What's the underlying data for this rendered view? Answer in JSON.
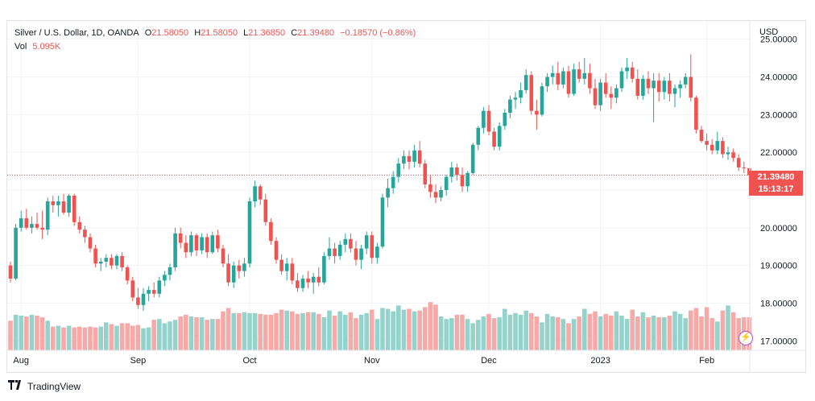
{
  "legend": {
    "symbol": "Silver / U.S. Dollar, 1D, OANDA",
    "open_label": "O",
    "open": "21.58050",
    "high_label": "H",
    "high": "21.58050",
    "low_label": "L",
    "low": "21.36850",
    "close_label": "C",
    "close": "21.39480",
    "change": "−0.18570 (−0.86%)",
    "vol_label": "Vol",
    "vol": "5.095K"
  },
  "currency": "USD",
  "last_price": "21.39480",
  "countdown": "15:13:17",
  "brand": "TradingView",
  "colors": {
    "up": "#26a69a",
    "down": "#ef5350",
    "up_vol": "#93d3cb",
    "down_vol": "#f7a9a7",
    "grid": "#f0f3fa"
  },
  "chart_data": {
    "type": "candlestick",
    "y_ticks": [
      "17.00000",
      "18.00000",
      "19.00000",
      "20.00000",
      "21.00000",
      "22.00000",
      "23.00000",
      "24.00000",
      "25.00000"
    ],
    "ylim": [
      16.9,
      25.1
    ],
    "x_labels": [
      {
        "label": "Aug",
        "index": 2
      },
      {
        "label": "Sep",
        "index": 24
      },
      {
        "label": "Oct",
        "index": 45
      },
      {
        "label": "Nov",
        "index": 68
      },
      {
        "label": "Dec",
        "index": 90
      },
      {
        "label": "2023",
        "index": 111
      },
      {
        "label": "Feb",
        "index": 131
      }
    ],
    "candles": [
      [
        19.0,
        19.1,
        18.55,
        18.65
      ],
      [
        18.65,
        20.1,
        18.6,
        20.0
      ],
      [
        20.0,
        20.45,
        19.9,
        20.25
      ],
      [
        20.25,
        20.5,
        19.95,
        20.0
      ],
      [
        20.0,
        20.3,
        19.85,
        20.1
      ],
      [
        20.1,
        20.4,
        19.95,
        20.0
      ],
      [
        20.0,
        20.45,
        19.7,
        19.95
      ],
      [
        19.95,
        20.8,
        19.8,
        20.7
      ],
      [
        20.7,
        20.85,
        20.4,
        20.6
      ],
      [
        20.6,
        20.85,
        20.3,
        20.7
      ],
      [
        20.7,
        20.9,
        20.35,
        20.4
      ],
      [
        20.4,
        20.9,
        20.3,
        20.85
      ],
      [
        20.85,
        20.9,
        20.05,
        20.15
      ],
      [
        20.15,
        20.3,
        19.85,
        19.95
      ],
      [
        19.95,
        20.05,
        19.6,
        19.75
      ],
      [
        19.75,
        19.85,
        19.35,
        19.45
      ],
      [
        19.45,
        19.55,
        18.95,
        19.05
      ],
      [
        19.05,
        19.2,
        18.85,
        19.1
      ],
      [
        19.1,
        19.3,
        18.95,
        19.2
      ],
      [
        19.2,
        19.3,
        18.9,
        19.0
      ],
      [
        19.0,
        19.3,
        18.9,
        19.25
      ],
      [
        19.25,
        19.35,
        18.85,
        18.95
      ],
      [
        18.95,
        19.0,
        18.5,
        18.6
      ],
      [
        18.6,
        18.7,
        18.05,
        18.15
      ],
      [
        18.15,
        18.4,
        17.85,
        17.95
      ],
      [
        17.95,
        18.4,
        17.8,
        18.25
      ],
      [
        18.25,
        18.45,
        18.05,
        18.35
      ],
      [
        18.35,
        18.55,
        18.15,
        18.25
      ],
      [
        18.25,
        18.7,
        18.15,
        18.6
      ],
      [
        18.6,
        18.85,
        18.45,
        18.75
      ],
      [
        18.75,
        19.05,
        18.6,
        18.95
      ],
      [
        18.95,
        20.0,
        18.85,
        19.85
      ],
      [
        19.85,
        20.0,
        19.45,
        19.6
      ],
      [
        19.6,
        19.8,
        19.2,
        19.35
      ],
      [
        19.35,
        19.9,
        19.25,
        19.8
      ],
      [
        19.8,
        19.85,
        19.25,
        19.4
      ],
      [
        19.4,
        19.85,
        19.3,
        19.75
      ],
      [
        19.75,
        19.85,
        19.2,
        19.35
      ],
      [
        19.35,
        19.9,
        19.3,
        19.8
      ],
      [
        19.8,
        19.95,
        19.35,
        19.45
      ],
      [
        19.45,
        19.55,
        18.95,
        19.05
      ],
      [
        19.05,
        19.3,
        18.45,
        18.55
      ],
      [
        18.55,
        19.1,
        18.4,
        19.0
      ],
      [
        19.0,
        19.15,
        18.65,
        18.85
      ],
      [
        18.85,
        19.2,
        18.7,
        19.05
      ],
      [
        19.05,
        20.8,
        18.95,
        20.7
      ],
      [
        20.7,
        21.25,
        20.55,
        21.1
      ],
      [
        21.1,
        21.15,
        20.6,
        20.75
      ],
      [
        20.75,
        20.9,
        20.05,
        20.15
      ],
      [
        20.15,
        20.25,
        19.55,
        19.65
      ],
      [
        19.65,
        19.75,
        19.05,
        19.15
      ],
      [
        19.15,
        19.3,
        18.75,
        18.85
      ],
      [
        18.85,
        19.2,
        18.6,
        19.05
      ],
      [
        19.05,
        19.2,
        18.5,
        18.6
      ],
      [
        18.6,
        18.8,
        18.3,
        18.4
      ],
      [
        18.4,
        18.75,
        18.3,
        18.65
      ],
      [
        18.65,
        18.85,
        18.4,
        18.55
      ],
      [
        18.55,
        18.8,
        18.25,
        18.7
      ],
      [
        18.7,
        18.95,
        18.45,
        18.55
      ],
      [
        18.55,
        19.35,
        18.5,
        19.25
      ],
      [
        19.25,
        19.75,
        19.15,
        19.45
      ],
      [
        19.45,
        19.6,
        19.05,
        19.25
      ],
      [
        19.25,
        19.65,
        19.15,
        19.55
      ],
      [
        19.55,
        19.85,
        19.35,
        19.7
      ],
      [
        19.7,
        19.85,
        19.35,
        19.45
      ],
      [
        19.45,
        19.65,
        19.0,
        19.15
      ],
      [
        19.15,
        19.55,
        18.9,
        19.45
      ],
      [
        19.45,
        19.9,
        19.3,
        19.8
      ],
      [
        19.8,
        19.9,
        19.05,
        19.2
      ],
      [
        19.2,
        19.6,
        19.05,
        19.5
      ],
      [
        19.5,
        20.9,
        19.45,
        20.8
      ],
      [
        20.8,
        21.3,
        20.55,
        21.05
      ],
      [
        21.05,
        21.5,
        20.9,
        21.35
      ],
      [
        21.35,
        21.85,
        21.2,
        21.7
      ],
      [
        21.7,
        22.05,
        21.55,
        21.9
      ],
      [
        21.9,
        22.05,
        21.55,
        21.75
      ],
      [
        21.75,
        22.2,
        21.6,
        22.05
      ],
      [
        22.05,
        22.3,
        21.6,
        21.7
      ],
      [
        21.7,
        21.8,
        21.05,
        21.15
      ],
      [
        21.15,
        21.4,
        20.8,
        20.95
      ],
      [
        20.95,
        21.15,
        20.65,
        20.8
      ],
      [
        20.8,
        21.1,
        20.7,
        21.0
      ],
      [
        21.0,
        21.4,
        20.85,
        21.35
      ],
      [
        21.35,
        21.75,
        21.2,
        21.6
      ],
      [
        21.6,
        21.7,
        21.25,
        21.4
      ],
      [
        21.4,
        21.6,
        20.95,
        21.1
      ],
      [
        21.1,
        21.5,
        20.95,
        21.45
      ],
      [
        21.45,
        22.25,
        21.4,
        22.2
      ],
      [
        22.2,
        22.7,
        22.05,
        22.65
      ],
      [
        22.65,
        23.2,
        22.5,
        23.1
      ],
      [
        23.1,
        23.25,
        22.45,
        22.55
      ],
      [
        22.55,
        22.65,
        22.05,
        22.15
      ],
      [
        22.15,
        22.8,
        22.05,
        22.7
      ],
      [
        22.7,
        23.15,
        22.6,
        23.05
      ],
      [
        23.05,
        23.5,
        22.9,
        23.4
      ],
      [
        23.4,
        23.6,
        23.15,
        23.45
      ],
      [
        23.45,
        23.85,
        23.3,
        23.65
      ],
      [
        23.65,
        24.2,
        23.55,
        24.05
      ],
      [
        24.05,
        24.15,
        23.0,
        23.1
      ],
      [
        23.1,
        23.4,
        22.6,
        23.0
      ],
      [
        23.0,
        23.85,
        22.95,
        23.75
      ],
      [
        23.75,
        24.1,
        23.6,
        24.0
      ],
      [
        24.0,
        24.3,
        23.8,
        24.1
      ],
      [
        24.1,
        24.4,
        23.65,
        23.8
      ],
      [
        23.8,
        24.25,
        23.7,
        24.15
      ],
      [
        24.15,
        24.3,
        23.45,
        23.55
      ],
      [
        23.55,
        24.35,
        23.5,
        24.2
      ],
      [
        24.2,
        24.4,
        23.85,
        23.95
      ],
      [
        23.95,
        24.5,
        23.8,
        24.1
      ],
      [
        24.1,
        24.35,
        23.55,
        23.7
      ],
      [
        23.7,
        23.95,
        23.15,
        23.25
      ],
      [
        23.25,
        23.95,
        23.1,
        23.85
      ],
      [
        23.85,
        24.1,
        23.45,
        23.55
      ],
      [
        23.55,
        23.75,
        23.15,
        23.45
      ],
      [
        23.45,
        23.8,
        23.3,
        23.7
      ],
      [
        23.7,
        24.25,
        23.6,
        24.15
      ],
      [
        24.15,
        24.5,
        23.95,
        24.25
      ],
      [
        24.25,
        24.4,
        23.85,
        23.95
      ],
      [
        23.95,
        24.2,
        23.4,
        23.5
      ],
      [
        23.5,
        24.05,
        23.4,
        23.95
      ],
      [
        23.95,
        24.15,
        23.55,
        23.7
      ],
      [
        23.7,
        24.1,
        22.8,
        23.9
      ],
      [
        23.9,
        24.1,
        23.35,
        23.6
      ],
      [
        23.6,
        24.0,
        23.4,
        23.9
      ],
      [
        23.9,
        24.1,
        23.35,
        23.55
      ],
      [
        23.55,
        23.8,
        23.2,
        23.7
      ],
      [
        23.7,
        23.9,
        23.45,
        23.8
      ],
      [
        23.8,
        24.1,
        23.7,
        24.0
      ],
      [
        24.0,
        24.6,
        23.35,
        23.45
      ],
      [
        23.45,
        23.5,
        22.5,
        22.6
      ],
      [
        22.6,
        22.7,
        22.25,
        22.3
      ],
      [
        22.3,
        22.5,
        22.05,
        22.2
      ],
      [
        22.2,
        22.35,
        21.95,
        22.05
      ],
      [
        22.05,
        22.55,
        21.95,
        22.3
      ],
      [
        22.3,
        22.4,
        21.85,
        21.95
      ],
      [
        21.95,
        22.15,
        21.8,
        22.0
      ],
      [
        22.0,
        22.1,
        21.75,
        21.85
      ],
      [
        21.85,
        21.95,
        21.5,
        21.6
      ],
      [
        21.6,
        21.75,
        21.45,
        21.58
      ],
      [
        21.58,
        21.58,
        21.37,
        21.39
      ]
    ],
    "volume": [
      0.35,
      0.42,
      0.41,
      0.4,
      0.42,
      0.41,
      0.39,
      0.35,
      0.28,
      0.29,
      0.27,
      0.29,
      0.27,
      0.28,
      0.27,
      0.28,
      0.27,
      0.28,
      0.33,
      0.31,
      0.29,
      0.32,
      0.32,
      0.29,
      0.3,
      0.26,
      0.27,
      0.36,
      0.37,
      0.32,
      0.34,
      0.36,
      0.4,
      0.42,
      0.4,
      0.39,
      0.39,
      0.36,
      0.37,
      0.37,
      0.46,
      0.5,
      0.44,
      0.44,
      0.45,
      0.44,
      0.44,
      0.43,
      0.42,
      0.42,
      0.44,
      0.48,
      0.47,
      0.46,
      0.43,
      0.44,
      0.45,
      0.45,
      0.43,
      0.39,
      0.47,
      0.41,
      0.46,
      0.42,
      0.45,
      0.38,
      0.42,
      0.44,
      0.48,
      0.37,
      0.5,
      0.49,
      0.46,
      0.53,
      0.48,
      0.49,
      0.46,
      0.47,
      0.51,
      0.57,
      0.54,
      0.4,
      0.37,
      0.38,
      0.42,
      0.42,
      0.37,
      0.32,
      0.36,
      0.4,
      0.43,
      0.38,
      0.39,
      0.49,
      0.42,
      0.44,
      0.42,
      0.47,
      0.44,
      0.4,
      0.33,
      0.43,
      0.4,
      0.39,
      0.37,
      0.32,
      0.37,
      0.4,
      0.49,
      0.43,
      0.46,
      0.4,
      0.43,
      0.41,
      0.46,
      0.41,
      0.37,
      0.48,
      0.4,
      0.45,
      0.39,
      0.41,
      0.39,
      0.39,
      0.41,
      0.46,
      0.43,
      0.38,
      0.47,
      0.5,
      0.4,
      0.51,
      0.38,
      0.34,
      0.47,
      0.53,
      0.45,
      0.38,
      0.39,
      0.39
    ]
  }
}
